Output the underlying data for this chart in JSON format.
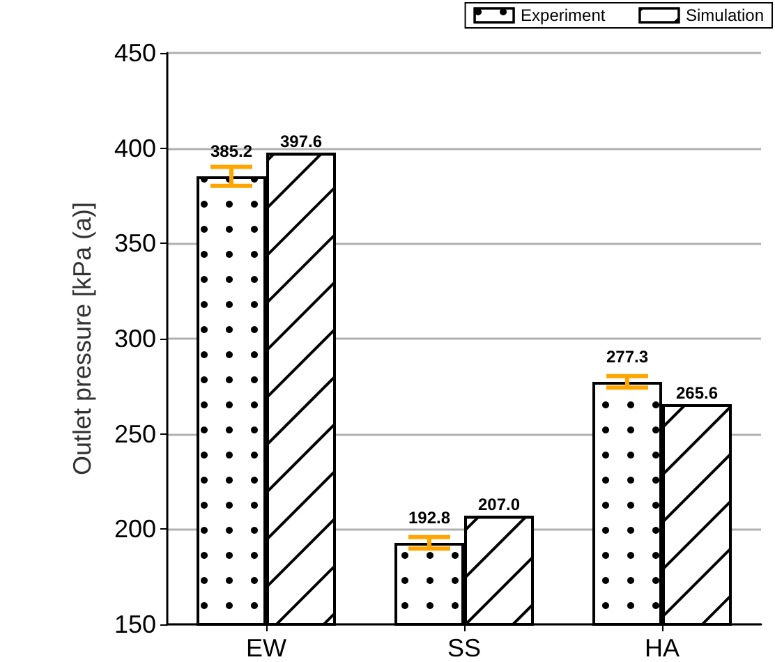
{
  "chart_data": {
    "type": "bar",
    "ylabel": "Outlet pressure [kPa (a)]",
    "categories": [
      "EW",
      "SS",
      "HA"
    ],
    "series": [
      {
        "name": "Experiment",
        "color": "#ffffff",
        "values": [
          385.2,
          192.8,
          277.3
        ],
        "errors": [
          5,
          3,
          3
        ],
        "value_labels": [
          "385.2",
          "192.8",
          "277.3"
        ]
      },
      {
        "name": "Simulation",
        "color": "#ffffff",
        "values": [
          397.6,
          207.0,
          265.6
        ],
        "value_labels": [
          "397.6",
          "207.0",
          "265.6"
        ]
      }
    ],
    "ylim": [
      150,
      450
    ],
    "yticks": [
      150,
      200,
      250,
      300,
      350,
      400,
      450
    ],
    "grid": "y",
    "legend": "top right"
  }
}
